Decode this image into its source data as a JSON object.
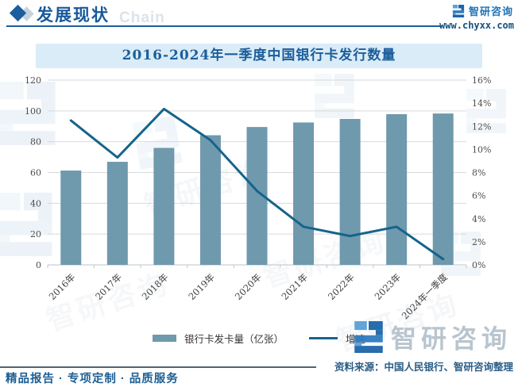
{
  "header": {
    "section_title": "发展现状",
    "bg_watermark": "Chain",
    "brand_name": "智研咨询",
    "website": "www.chyxx.com"
  },
  "title": "2016-2024年一季度中国银行卡发行数量",
  "chart_data": {
    "type": "bar",
    "title": "2016-2024年一季度中国银行卡发行数量",
    "categories": [
      "2016年",
      "2017年",
      "2018年",
      "2019年",
      "2020年",
      "2021年",
      "2022年",
      "2023年",
      "2024年一季度"
    ],
    "series": [
      {
        "name": "银行卡发卡量（亿张）",
        "type": "bar",
        "axis": "left",
        "color": "#6f99ad",
        "values": [
          61.25,
          66.93,
          75.97,
          84.19,
          89.54,
          92.47,
          94.78,
          97.87,
          98.3
        ]
      },
      {
        "name": "增速",
        "type": "line",
        "axis": "right",
        "color": "#15648b",
        "values": [
          12.5,
          9.3,
          13.5,
          10.8,
          6.4,
          3.3,
          2.5,
          3.3,
          0.5
        ]
      }
    ],
    "left_axis": {
      "min": 0,
      "max": 120,
      "step": 20,
      "ticks": [
        "0",
        "20",
        "40",
        "60",
        "80",
        "100",
        "120"
      ]
    },
    "right_axis": {
      "min": 0,
      "max": 16,
      "step": 2,
      "ticks": [
        "0%",
        "2%",
        "4%",
        "6%",
        "8%",
        "10%",
        "12%",
        "14%",
        "16%"
      ]
    },
    "grid": true,
    "legend_position": "bottom"
  },
  "footer": {
    "source": "资料来源：中国人民银行、智研咨询整理",
    "tagline": "精品报告 · 专项定制 · 品质服务",
    "brand_name": "智研咨询"
  },
  "colors": {
    "accent_blue": "#1c5e9b",
    "banner_bg": "#daecf7",
    "bar": "#6f99ad",
    "line": "#15648b",
    "grid": "#d9d9d9",
    "axis": "#b9c6ce",
    "watermark_gray": "#b6c2cc"
  }
}
